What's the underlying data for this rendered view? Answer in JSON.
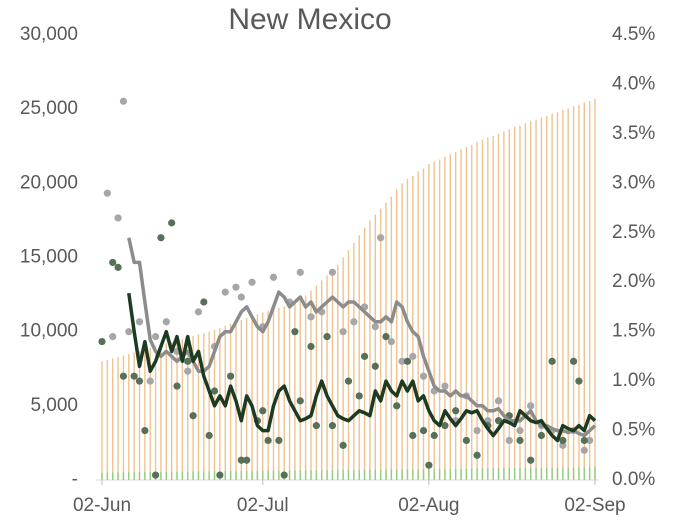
{
  "chart_data": {
    "type": "combo",
    "title": "New Mexico",
    "x": [
      0,
      1,
      2,
      3,
      4,
      5,
      6,
      7,
      8,
      9,
      10,
      11,
      12,
      13,
      14,
      15,
      16,
      17,
      18,
      19,
      20,
      21,
      22,
      23,
      24,
      25,
      26,
      27,
      28,
      29,
      30,
      31,
      32,
      33,
      34,
      35,
      36,
      37,
      38,
      39,
      40,
      41,
      42,
      43,
      44,
      45,
      46,
      47,
      48,
      49,
      50,
      51,
      52,
      53,
      54,
      55,
      56,
      57,
      58,
      59,
      60,
      61,
      62,
      63,
      64,
      65,
      66,
      67,
      68,
      69,
      70,
      71,
      72,
      73,
      74,
      75,
      76,
      77,
      78,
      79,
      80,
      81,
      82,
      83,
      84,
      85,
      86,
      87,
      88,
      89,
      90,
      91,
      92
    ],
    "xlim": [
      0,
      92
    ],
    "xticks": [
      {
        "value": 0,
        "label": "02-Jun"
      },
      {
        "value": 30,
        "label": "02-Jul"
      },
      {
        "value": 61,
        "label": "02-Aug"
      },
      {
        "value": 92,
        "label": "02-Sep"
      }
    ],
    "ylim": [
      0,
      30000
    ],
    "yticks": [
      {
        "value": 0,
        "label": "-"
      },
      {
        "value": 5000,
        "label": "5,000"
      },
      {
        "value": 10000,
        "label": "10,000"
      },
      {
        "value": 15000,
        "label": "15,000"
      },
      {
        "value": 20000,
        "label": "20,000"
      },
      {
        "value": 25000,
        "label": "25,000"
      },
      {
        "value": 30000,
        "label": "30,000"
      }
    ],
    "y2lim": [
      0,
      4.5
    ],
    "y2ticks": [
      {
        "value": 0,
        "label": "0.0%"
      },
      {
        "value": 0.5,
        "label": "0.5%"
      },
      {
        "value": 1,
        "label": "1.0%"
      },
      {
        "value": 1.5,
        "label": "1.5%"
      },
      {
        "value": 2,
        "label": "2.0%"
      },
      {
        "value": 2.5,
        "label": "2.5%"
      },
      {
        "value": 3,
        "label": "3.0%"
      },
      {
        "value": 3.5,
        "label": "3.5%"
      },
      {
        "value": 4,
        "label": "4.0%"
      },
      {
        "value": 4.5,
        "label": "4.5%"
      }
    ],
    "series": [
      {
        "type": "bar",
        "color": "#efc38f",
        "values": [
          8000,
          8100,
          8200,
          8300,
          8400,
          8500,
          8600,
          8700,
          8800,
          8900,
          9000,
          9100,
          9200,
          9300,
          9400,
          9500,
          9600,
          9700,
          9800,
          9900,
          10000,
          10130,
          10260,
          10390,
          10520,
          10650,
          10780,
          10910,
          11040,
          11170,
          11300,
          11400,
          11500,
          11600,
          11700,
          11800,
          11900,
          12100,
          12440,
          12780,
          13120,
          13460,
          13800,
          14140,
          14500,
          15000,
          15500,
          16000,
          16500,
          17000,
          17500,
          17900,
          18300,
          18700,
          19100,
          19600,
          20000,
          20300,
          20500,
          20800,
          21000,
          21300,
          21450,
          21600,
          21800,
          21950,
          22100,
          22300,
          22450,
          22600,
          22800,
          22950,
          23100,
          23200,
          23350,
          23500,
          23650,
          23800,
          23900,
          24050,
          24200,
          24300,
          24450,
          24550,
          24700,
          24800,
          24950,
          25050,
          25200,
          25300,
          25450,
          25550,
          25700
        ]
      },
      {
        "type": "bar",
        "color": "#8fcf7f",
        "values": [
          500,
          504,
          508,
          512,
          516,
          520,
          524,
          528,
          532,
          536,
          540,
          544,
          548,
          552,
          556,
          560,
          564,
          568,
          572,
          576,
          580,
          584,
          588,
          592,
          596,
          600,
          604,
          608,
          612,
          616,
          620,
          624,
          628,
          632,
          636,
          640,
          644,
          648,
          652,
          656,
          660,
          664,
          668,
          672,
          676,
          680,
          684,
          688,
          692,
          696,
          700,
          704,
          708,
          712,
          716,
          720,
          724,
          728,
          732,
          736,
          740,
          744,
          748,
          752,
          756,
          760,
          764,
          768,
          772,
          776,
          780,
          784,
          788,
          792,
          796,
          800,
          804,
          808,
          812,
          816,
          820,
          824,
          828,
          832,
          836,
          840,
          844,
          848,
          852,
          856,
          860,
          864,
          868
        ]
      },
      {
        "type": "scatter",
        "axis": "y2",
        "color": "#a6a6a6",
        "x": [
          1,
          2,
          3,
          4,
          5,
          7,
          9,
          10,
          12,
          14,
          16,
          18,
          21,
          23,
          25,
          26,
          28,
          30,
          32,
          35,
          37,
          39,
          41,
          43,
          45,
          47,
          49,
          51,
          52,
          54,
          56,
          58,
          60,
          62,
          64,
          66,
          68,
          70,
          72,
          74,
          76,
          78,
          80,
          82,
          84,
          86,
          88,
          90,
          91
        ],
        "values": [
          2.9,
          1.45,
          2.65,
          3.83,
          1.5,
          1.6,
          1.0,
          1.45,
          1.6,
          1.3,
          1.1,
          1.7,
          1.35,
          1.9,
          1.95,
          1.85,
          2.0,
          1.55,
          2.05,
          1.8,
          2.1,
          1.65,
          1.7,
          2.1,
          1.5,
          1.6,
          1.75,
          1.55,
          2.45,
          1.4,
          1.2,
          1.25,
          1.05,
          0.9,
          0.95,
          0.6,
          0.85,
          0.5,
          0.6,
          0.8,
          0.4,
          0.5,
          0.75,
          0.55,
          0.5,
          0.35,
          0.5,
          0.3,
          0.4
        ]
      },
      {
        "type": "scatter",
        "axis": "y2",
        "color": "#56705a",
        "x": [
          0,
          2,
          3,
          4,
          6,
          7,
          8,
          10,
          11,
          13,
          14,
          16,
          17,
          19,
          20,
          21,
          22,
          24,
          26,
          27,
          29,
          30,
          31,
          33,
          34,
          36,
          37,
          39,
          40,
          42,
          43,
          45,
          46,
          48,
          49,
          51,
          53,
          55,
          57,
          58,
          60,
          61,
          62,
          64,
          66,
          68,
          70,
          72,
          74,
          76,
          78,
          80,
          82,
          84,
          86,
          88,
          89,
          90
        ],
        "values": [
          1.4,
          2.2,
          2.15,
          1.05,
          1.05,
          1.0,
          0.5,
          0.05,
          2.45,
          2.6,
          0.95,
          1.2,
          0.65,
          1.8,
          0.45,
          0.9,
          0.05,
          1.05,
          0.2,
          0.2,
          0.6,
          0.7,
          0.4,
          0.4,
          0.05,
          1.5,
          0.8,
          1.35,
          0.55,
          1.45,
          0.55,
          0.35,
          1.0,
          0.85,
          1.25,
          1.15,
          1.45,
          0.75,
          1.2,
          0.45,
          0.5,
          0.15,
          0.45,
          0.55,
          0.7,
          0.4,
          0.25,
          0.55,
          0.6,
          0.65,
          0.4,
          0.2,
          0.45,
          1.2,
          0.4,
          1.2,
          1.0,
          0.4
        ]
      },
      {
        "type": "line",
        "axis": "y2",
        "color": "#8c8c8c",
        "width": 3.5,
        "values": [
          null,
          null,
          null,
          null,
          null,
          2.45,
          2.2,
          2.2,
          1.8,
          1.42,
          1.3,
          1.25,
          1.3,
          1.25,
          1.2,
          1.25,
          1.3,
          1.2,
          1.1,
          1.1,
          1.15,
          1.3,
          1.45,
          1.5,
          1.5,
          1.6,
          1.7,
          1.75,
          1.65,
          1.55,
          1.5,
          1.6,
          1.75,
          1.9,
          1.85,
          1.75,
          1.8,
          1.85,
          1.75,
          1.8,
          1.7,
          1.75,
          1.8,
          1.85,
          1.8,
          1.75,
          1.8,
          1.8,
          1.75,
          1.7,
          1.65,
          1.6,
          1.6,
          1.65,
          1.6,
          1.8,
          1.75,
          1.6,
          1.5,
          1.45,
          1.25,
          1.1,
          0.95,
          0.9,
          0.9,
          0.85,
          0.9,
          0.85,
          0.85,
          0.8,
          0.75,
          0.75,
          0.7,
          0.7,
          0.72,
          0.65,
          0.6,
          0.6,
          0.6,
          0.65,
          0.7,
          0.6,
          0.55,
          0.55,
          0.52,
          0.5,
          0.5,
          0.48,
          0.5,
          0.47,
          0.45,
          0.5,
          0.55
        ]
      },
      {
        "type": "line",
        "axis": "y2",
        "color": "#1d3a22",
        "width": 3.5,
        "values": [
          null,
          null,
          null,
          null,
          null,
          1.89,
          1.5,
          1.15,
          1.4,
          1.1,
          1.2,
          1.35,
          1.5,
          1.3,
          1.45,
          1.2,
          1.45,
          1.2,
          1.3,
          1.05,
          0.9,
          0.75,
          0.85,
          0.75,
          0.95,
          0.8,
          0.6,
          0.85,
          0.75,
          0.55,
          0.5,
          0.5,
          0.75,
          0.9,
          0.95,
          0.8,
          0.7,
          0.6,
          0.62,
          0.65,
          0.85,
          1.0,
          0.85,
          0.75,
          0.65,
          0.62,
          0.6,
          0.65,
          0.7,
          0.68,
          0.65,
          0.9,
          0.8,
          1.0,
          0.9,
          0.85,
          1.0,
          0.9,
          1.0,
          0.8,
          0.85,
          0.7,
          0.6,
          0.55,
          0.7,
          0.62,
          0.55,
          0.62,
          0.7,
          0.68,
          0.7,
          0.6,
          0.52,
          0.45,
          0.52,
          0.6,
          0.58,
          0.55,
          0.7,
          0.65,
          0.6,
          0.58,
          0.6,
          0.52,
          0.45,
          0.4,
          0.55,
          0.52,
          0.5,
          0.55,
          0.5,
          0.65,
          0.6
        ]
      }
    ]
  }
}
